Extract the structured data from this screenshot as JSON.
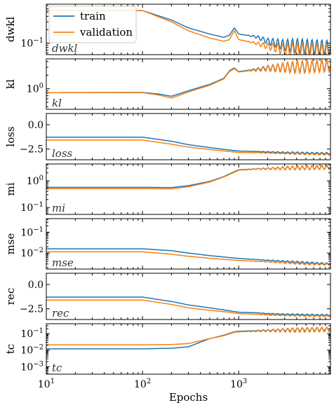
{
  "chart_data": {
    "type": "line",
    "x_scale": "log",
    "x_range": [
      10,
      9000
    ],
    "x_ticks": [
      10,
      100,
      1000
    ],
    "x_tick_labels": [
      "10^1",
      "10^2",
      "10^3"
    ],
    "xlabel": "Epochs",
    "legend": {
      "placement": "top-left",
      "entries": [
        "train",
        "validation"
      ]
    },
    "colors": {
      "train": "#1f77b4",
      "validation": "#ff7f0e"
    },
    "panels": [
      {
        "ylabel": "dwkl",
        "inner_label": "dwkl",
        "y_scale": "log",
        "ylim": [
          0.055,
          0.75
        ],
        "y_ticks": [
          {
            "v": 0.1,
            "label": "10^-1"
          }
        ],
        "series": [
          {
            "name": "train",
            "x": [
              10,
              100,
              200,
              300,
              500,
              700,
              800,
              900,
              1000,
              1500,
              2000,
              3000,
              5000,
              9000
            ],
            "y": [
              0.54,
              0.54,
              0.33,
              0.22,
              0.16,
              0.135,
              0.15,
              0.22,
              0.16,
              0.14,
              0.11,
              0.09,
              0.085,
              0.08
            ],
            "osc": 0.16
          },
          {
            "name": "validation",
            "x": [
              10,
              100,
              200,
              300,
              500,
              700,
              800,
              900,
              1000,
              1500,
              2000,
              3000,
              5000,
              9000
            ],
            "y": [
              0.54,
              0.54,
              0.3,
              0.19,
              0.13,
              0.11,
              0.12,
              0.19,
              0.12,
              0.1,
              0.085,
              0.072,
              0.068,
              0.064
            ],
            "osc": 0.16
          }
        ]
      },
      {
        "ylabel": "kl",
        "inner_label": "kl",
        "y_scale": "log",
        "ylim": [
          0.35,
          4.6
        ],
        "y_ticks": [
          {
            "v": 1,
            "label": "10^0"
          }
        ],
        "series": [
          {
            "name": "train",
            "x": [
              10,
              100,
              150,
              200,
              300,
              500,
              700,
              800,
              900,
              1000,
              1500,
              2000,
              3000,
              5000,
              9000
            ],
            "y": [
              0.82,
              0.83,
              0.76,
              0.68,
              0.9,
              1.25,
              1.7,
              2.5,
              2.9,
              2.4,
              2.7,
              2.9,
              3.0,
              3.1,
              3.3
            ],
            "osc": 0.12
          },
          {
            "name": "validation",
            "x": [
              10,
              100,
              150,
              200,
              300,
              500,
              700,
              800,
              900,
              1000,
              1500,
              2000,
              3000,
              5000,
              9000
            ],
            "y": [
              0.82,
              0.82,
              0.72,
              0.62,
              0.85,
              1.2,
              1.65,
              2.4,
              2.8,
              2.35,
              2.6,
              2.8,
              2.95,
              3.05,
              3.25
            ],
            "osc": 0.14
          }
        ]
      },
      {
        "ylabel": "loss",
        "inner_label": "loss",
        "y_scale": "linear",
        "ylim": [
          -3.6,
          1.15
        ],
        "y_ticks": [
          {
            "v": 0,
            "label": "0.0"
          },
          {
            "v": -2.5,
            "label": "−2.5"
          }
        ],
        "series": [
          {
            "name": "train",
            "x": [
              10,
              100,
              200,
              300,
              500,
              800,
              1000,
              1500,
              2000,
              3000,
              5000,
              9000
            ],
            "y": [
              -1.28,
              -1.28,
              -1.7,
              -2.05,
              -2.35,
              -2.6,
              -2.7,
              -2.75,
              -2.8,
              -2.85,
              -2.9,
              -2.95
            ],
            "osc": 0.08
          },
          {
            "name": "validation",
            "x": [
              10,
              100,
              200,
              300,
              500,
              800,
              1000,
              1500,
              2000,
              3000,
              5000,
              9000
            ],
            "y": [
              -1.58,
              -1.58,
              -2.0,
              -2.3,
              -2.55,
              -2.75,
              -2.85,
              -2.88,
              -2.9,
              -2.95,
              -3.0,
              -3.05
            ],
            "osc": 0.08
          }
        ]
      },
      {
        "ylabel": "mi",
        "inner_label": "mi",
        "y_scale": "log",
        "ylim": [
          0.055,
          4.3
        ],
        "y_ticks": [
          {
            "v": 1,
            "label": "10^0"
          },
          {
            "v": 0.1,
            "label": "10^-1"
          }
        ],
        "series": [
          {
            "name": "train",
            "x": [
              10,
              100,
              200,
              300,
              500,
              700,
              900,
              1000,
              1500,
              2000,
              3000,
              5000,
              9000
            ],
            "y": [
              0.57,
              0.57,
              0.56,
              0.66,
              0.95,
              1.45,
              2.2,
              2.6,
              2.8,
              2.9,
              3.0,
              3.1,
              3.2
            ],
            "osc": 0.06
          },
          {
            "name": "validation",
            "x": [
              10,
              100,
              200,
              300,
              500,
              700,
              900,
              1000,
              1500,
              2000,
              3000,
              5000,
              9000
            ],
            "y": [
              0.51,
              0.51,
              0.5,
              0.6,
              0.9,
              1.4,
              2.1,
              2.5,
              2.75,
              2.85,
              3.0,
              3.1,
              3.25
            ],
            "osc": 0.08
          }
        ]
      },
      {
        "ylabel": "mse",
        "inner_label": "mse",
        "y_scale": "log",
        "ylim": [
          0.0017,
          0.45
        ],
        "y_ticks": [
          {
            "v": 0.1,
            "label": "10^-1"
          },
          {
            "v": 0.01,
            "label": "10^-2"
          }
        ],
        "series": [
          {
            "name": "train",
            "x": [
              10,
              100,
              200,
              300,
              500,
              1000,
              2000,
              3000,
              5000,
              9000
            ],
            "y": [
              0.016,
              0.016,
              0.013,
              0.01,
              0.0075,
              0.0055,
              0.0045,
              0.004,
              0.0035,
              0.003
            ],
            "osc": 0.04
          },
          {
            "name": "validation",
            "x": [
              10,
              100,
              200,
              300,
              500,
              1000,
              2000,
              3000,
              5000,
              9000
            ],
            "y": [
              0.0115,
              0.0115,
              0.0088,
              0.007,
              0.0056,
              0.0044,
              0.0038,
              0.0034,
              0.003,
              0.0028
            ],
            "osc": 0.04
          }
        ]
      },
      {
        "ylabel": "rec",
        "inner_label": "rec",
        "y_scale": "linear",
        "ylim": [
          -3.6,
          1.15
        ],
        "y_ticks": [
          {
            "v": 0,
            "label": "0.0"
          },
          {
            "v": -2.5,
            "label": "−2.5"
          }
        ],
        "series": [
          {
            "name": "train",
            "x": [
              10,
              100,
              200,
              300,
              500,
              800,
              1000,
              1500,
              2000,
              3000,
              5000,
              9000
            ],
            "y": [
              -1.3,
              -1.3,
              -1.75,
              -2.1,
              -2.4,
              -2.7,
              -2.85,
              -2.9,
              -3.0,
              -3.05,
              -3.1,
              -3.15
            ],
            "osc": 0.06
          },
          {
            "name": "validation",
            "x": [
              10,
              100,
              200,
              300,
              500,
              800,
              1000,
              1500,
              2000,
              3000,
              5000,
              9000
            ],
            "y": [
              -1.6,
              -1.6,
              -2.05,
              -2.4,
              -2.65,
              -2.85,
              -3.0,
              -3.05,
              -3.12,
              -3.18,
              -3.22,
              -3.25
            ],
            "osc": 0.06
          }
        ]
      },
      {
        "ylabel": "tc",
        "inner_label": "tc",
        "y_scale": "log",
        "ylim": [
          0.00035,
          0.4
        ],
        "y_ticks": [
          {
            "v": 0.1,
            "label": "10^-1"
          },
          {
            "v": 0.01,
            "label": "10^-2"
          },
          {
            "v": 0.001,
            "label": "10^-3"
          }
        ],
        "series": [
          {
            "name": "train",
            "x": [
              10,
              100,
              200,
              300,
              500,
              700,
              900,
              1000,
              1500,
              2000,
              3000,
              5000,
              9000
            ],
            "y": [
              0.012,
              0.012,
              0.013,
              0.016,
              0.05,
              0.08,
              0.13,
              0.14,
              0.15,
              0.16,
              0.17,
              0.18,
              0.19
            ],
            "osc": 0.1
          },
          {
            "name": "validation",
            "x": [
              10,
              100,
              200,
              300,
              500,
              700,
              900,
              1000,
              1500,
              2000,
              3000,
              5000,
              9000
            ],
            "y": [
              0.021,
              0.021,
              0.022,
              0.025,
              0.05,
              0.075,
              0.12,
              0.13,
              0.14,
              0.15,
              0.16,
              0.17,
              0.18
            ],
            "osc": 0.14
          }
        ]
      }
    ]
  }
}
